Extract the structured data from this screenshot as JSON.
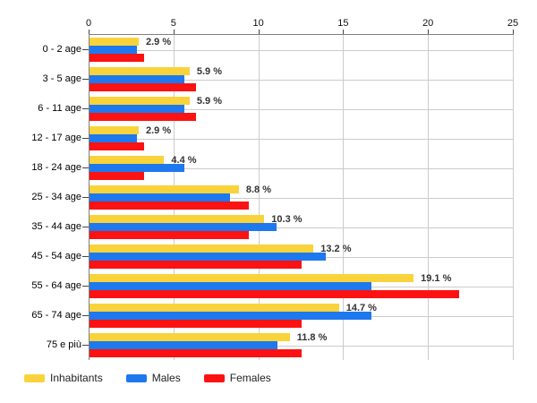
{
  "chart_data": {
    "type": "bar",
    "orientation": "horizontal",
    "title": "",
    "xlabel": "",
    "ylabel": "",
    "xlim": [
      0,
      25
    ],
    "x_ticks": [
      0,
      5,
      10,
      15,
      20,
      25
    ],
    "grid": true,
    "legend_position": "bottom-left",
    "categories": [
      "0 - 2 age",
      "3 - 5 age",
      "6 - 11 age",
      "12 - 17 age",
      "18 - 24 age",
      "25 - 34 age",
      "35 - 44 age",
      "45 - 54 age",
      "55 - 64 age",
      "65 - 74 age",
      "75 e più"
    ],
    "series": [
      {
        "name": "Inhabitants",
        "color": "#F9D33C",
        "values": [
          2.9,
          5.9,
          5.9,
          2.9,
          4.4,
          8.8,
          10.3,
          13.2,
          19.1,
          14.7,
          11.8
        ]
      },
      {
        "name": "Males",
        "color": "#1E78EE",
        "values": [
          2.8,
          5.6,
          5.6,
          2.8,
          5.6,
          8.3,
          11.0,
          13.9,
          16.6,
          16.6,
          11.1
        ]
      },
      {
        "name": "Females",
        "color": "#FC1212",
        "values": [
          3.2,
          6.3,
          6.3,
          3.2,
          3.2,
          9.4,
          9.4,
          12.5,
          21.8,
          12.5,
          12.5
        ]
      }
    ],
    "annotations": [
      "2.9 %",
      "5.9 %",
      "5.9 %",
      "2.9 %",
      "4.4 %",
      "8.8 %",
      "10.3 %",
      "13.2 %",
      "19.1 %",
      "14.7 %",
      "11.8 %"
    ],
    "colors": {
      "grid": "#cccccc",
      "axis": "#808080",
      "tick": "#444444",
      "axis_label": "#111111",
      "category_label": "#000000",
      "annotation": "#333333",
      "background": "#ffffff"
    }
  }
}
